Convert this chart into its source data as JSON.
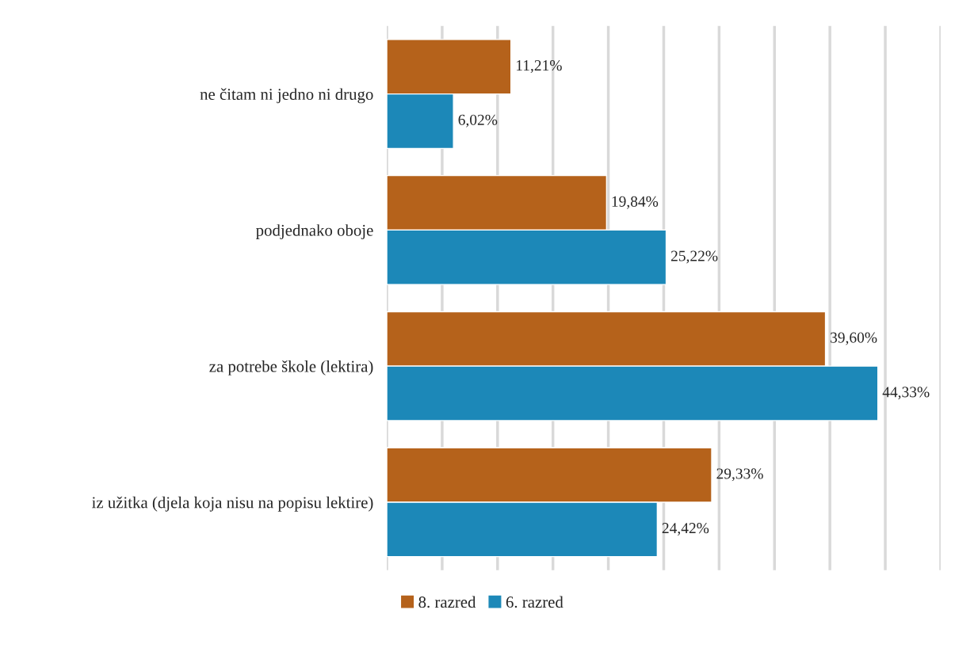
{
  "chart_data": {
    "type": "bar",
    "orientation": "horizontal",
    "categories": [
      "ne čitam ni jedno ni drugo",
      "podjednako oboje",
      "za potrebe škole (lektira)",
      "iz užitka (djela koja nisu na popisu lektire)"
    ],
    "series": [
      {
        "name": "8. razred",
        "color": "#b5621b",
        "values": [
          11.21,
          19.84,
          39.6,
          29.33
        ],
        "value_labels": [
          "11,21%",
          "19,84%",
          "39,60%",
          "29,33%"
        ]
      },
      {
        "name": "6. razred",
        "color": "#1c88b8",
        "values": [
          6.02,
          25.22,
          44.33,
          24.42
        ],
        "value_labels": [
          "6,02%",
          "25,22%",
          "44,33%",
          "24,42%"
        ]
      }
    ],
    "xlim": [
      0,
      50
    ],
    "xticks": [
      {
        "value": 0,
        "label": null
      },
      {
        "value": 5,
        "label": null
      },
      {
        "value": 10,
        "label": null
      },
      {
        "value": 15,
        "label": null
      },
      {
        "value": 20,
        "label": null
      },
      {
        "value": 25,
        "label": null
      },
      {
        "value": 30,
        "label": null
      },
      {
        "value": 35,
        "label": null
      },
      {
        "value": 40,
        "label": null
      },
      {
        "value": 45,
        "label": null
      },
      {
        "value": 50,
        "label": null
      }
    ],
    "grid": "x",
    "tick_labels": "y",
    "legend": "bottom left"
  }
}
